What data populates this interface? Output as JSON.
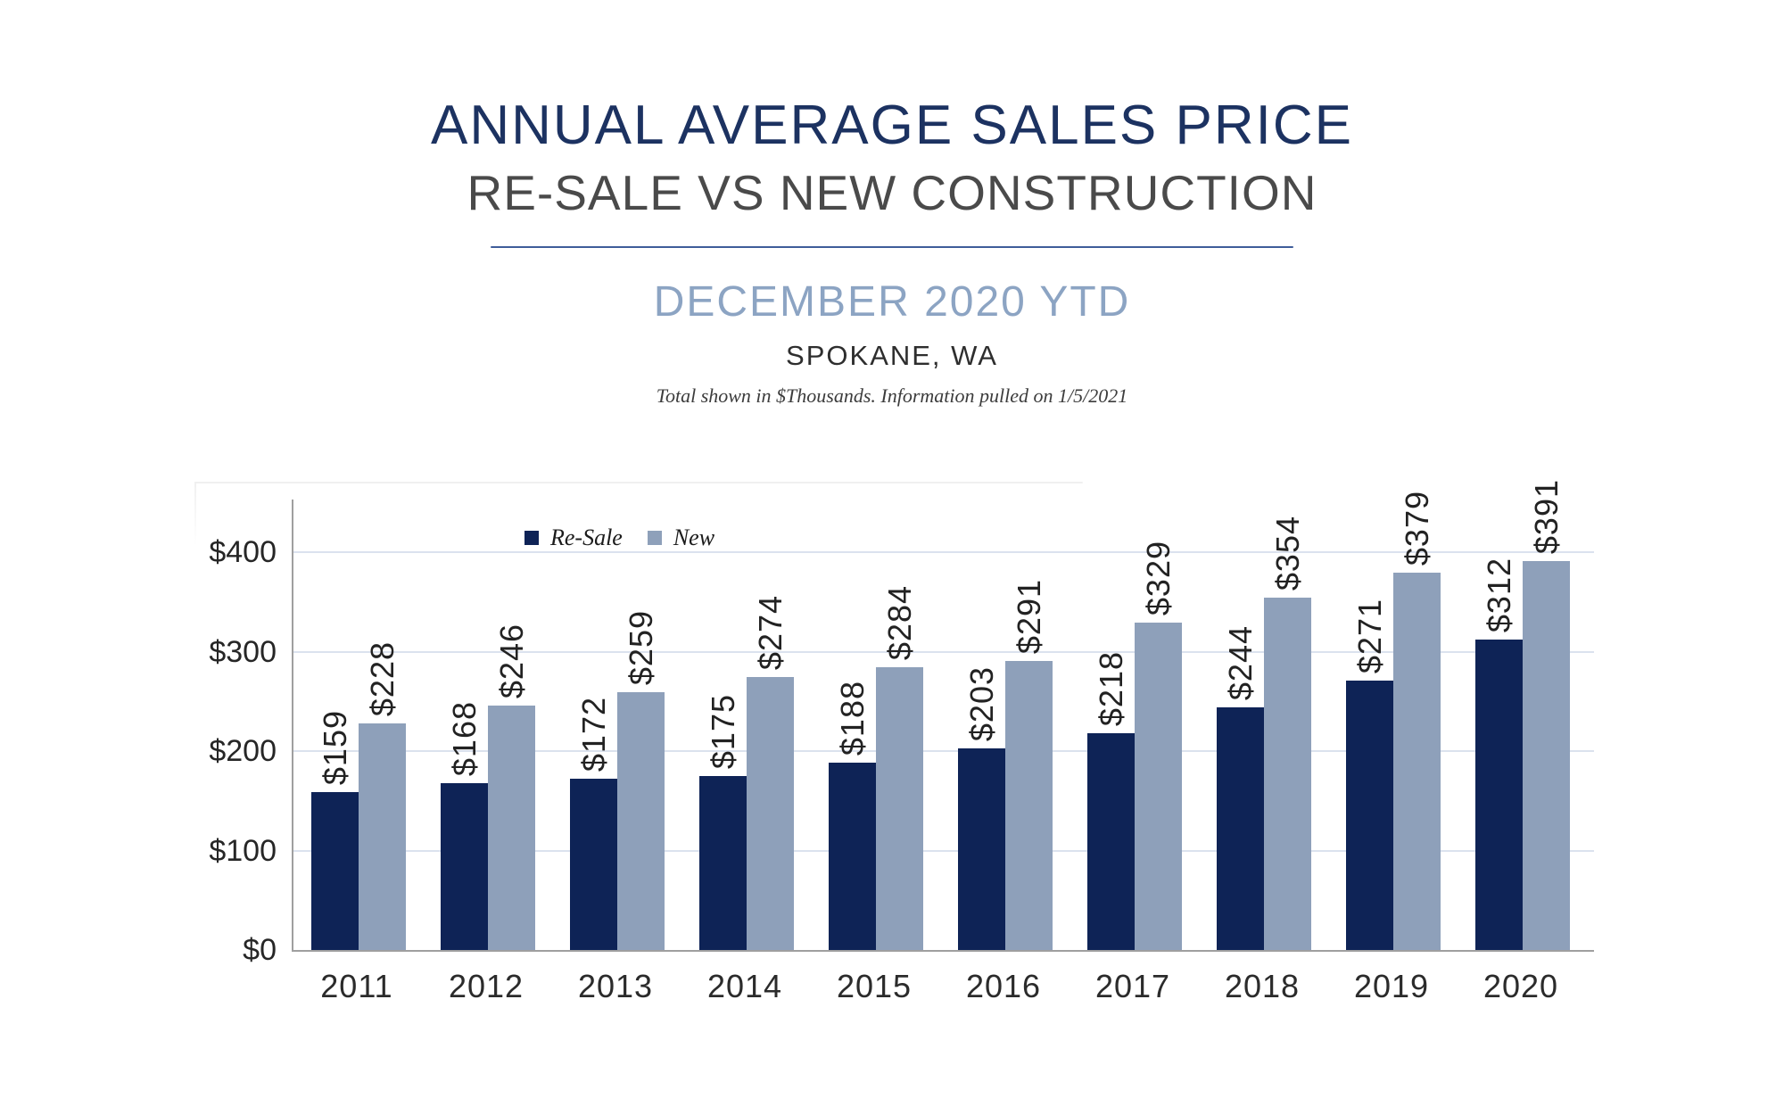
{
  "header": {
    "title": "ANNUAL AVERAGE SALES PRICE",
    "subtitle": "RE-SALE VS NEW CONSTRUCTION",
    "period": "DECEMBER 2020 YTD",
    "location": "SPOKANE, WA",
    "note": "Total shown in $Thousands. Information pulled on 1/5/2021"
  },
  "colors": {
    "title_navy": "#1c3261",
    "period_blue": "#8ca4c3",
    "divider_blue": "#3f5d9a",
    "resale_navy": "#0e2356",
    "new_gray_blue": "#8ea0ba",
    "gridline": "#dbe2ee",
    "axis_gray": "#9f9f9f",
    "label_text": "#222222"
  },
  "chart_data": {
    "type": "bar",
    "title": "Annual Average Sales Price — Re-Sale vs New Construction, December 2020 YTD, Spokane WA",
    "units": "$Thousands",
    "categories": [
      "2011",
      "2012",
      "2013",
      "2014",
      "2015",
      "2016",
      "2017",
      "2018",
      "2019",
      "2020"
    ],
    "series": [
      {
        "name": "Re-Sale",
        "color_key": "resale_navy",
        "values": [
          159,
          168,
          172,
          175,
          188,
          203,
          218,
          244,
          271,
          312
        ]
      },
      {
        "name": "New",
        "color_key": "new_gray_blue",
        "values": [
          228,
          246,
          259,
          274,
          284,
          291,
          329,
          354,
          379,
          391
        ]
      }
    ],
    "value_label_prefix": "$",
    "value_label_rotation": -90,
    "y_ticks": [
      {
        "value": 0,
        "label": "$0"
      },
      {
        "value": 100,
        "label": "$100"
      },
      {
        "value": 200,
        "label": "$200"
      },
      {
        "value": 300,
        "label": "$300"
      },
      {
        "value": 400,
        "label": "$400"
      }
    ],
    "ylim": [
      0,
      453
    ],
    "grid": "horizontal",
    "legend_position": "top-left-inside"
  }
}
